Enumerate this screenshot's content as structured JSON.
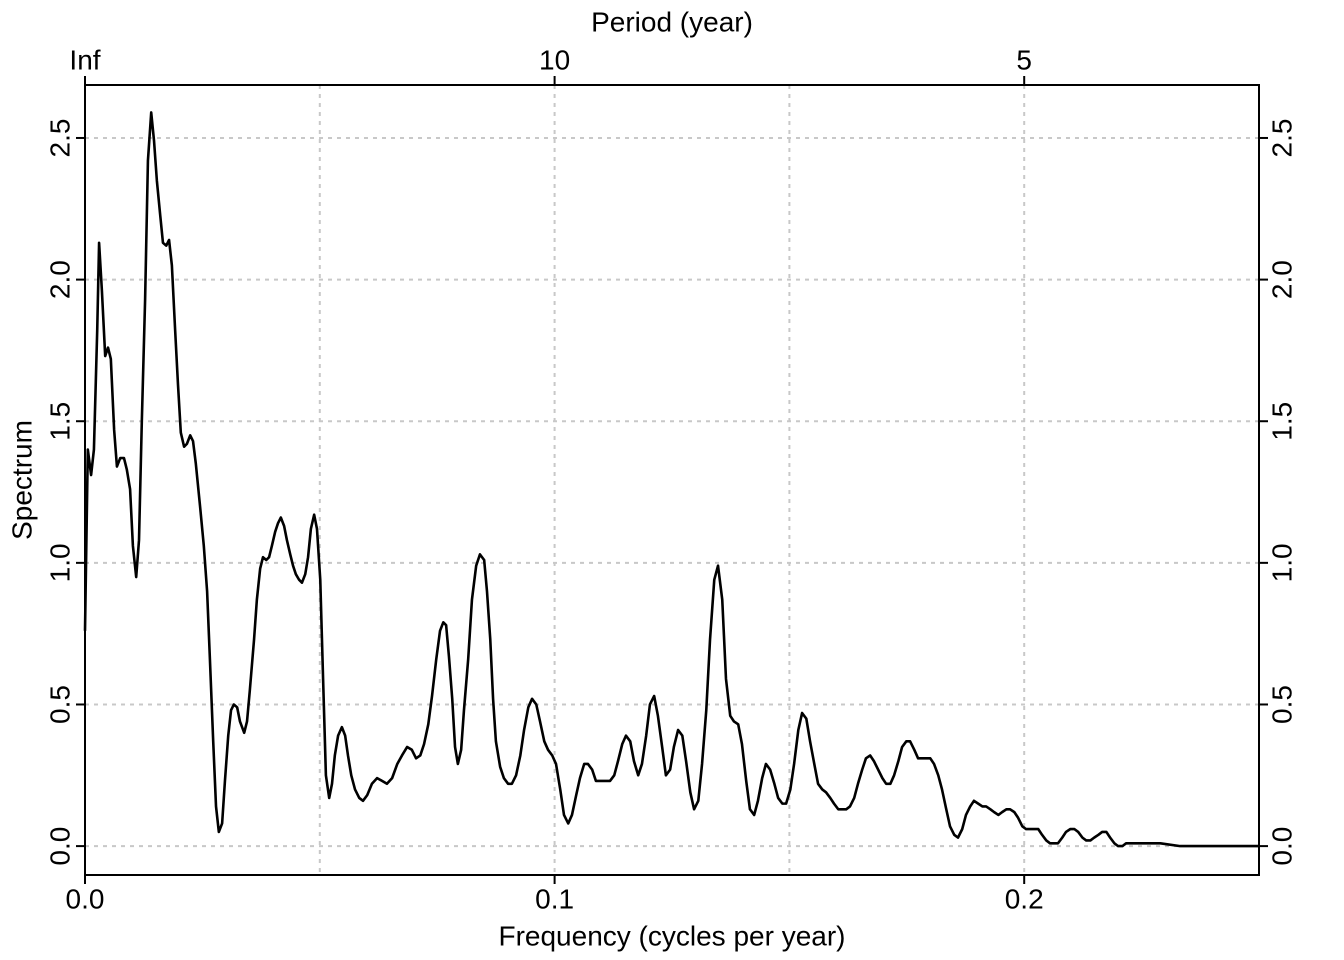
{
  "chart_data": {
    "type": "line",
    "xlabel": "Frequency (cycles per year)",
    "ylabel": "Spectrum",
    "x2label": "Period (year)",
    "x": [
      0,
      0.0006,
      0.0013,
      0.0019,
      0.0026,
      0.003,
      0.0036,
      0.0043,
      0.0049,
      0.0055,
      0.0062,
      0.0068,
      0.0075,
      0.0083,
      0.0089,
      0.0096,
      0.0102,
      0.0109,
      0.0115,
      0.0121,
      0.0128,
      0.0134,
      0.0141,
      0.0147,
      0.0153,
      0.016,
      0.0166,
      0.0173,
      0.0179,
      0.0185,
      0.0192,
      0.0198,
      0.0204,
      0.0211,
      0.0217,
      0.0224,
      0.023,
      0.0236,
      0.0245,
      0.0253,
      0.026,
      0.0266,
      0.0273,
      0.0279,
      0.0285,
      0.0292,
      0.0298,
      0.0305,
      0.0311,
      0.0317,
      0.0324,
      0.033,
      0.0339,
      0.0345,
      0.0351,
      0.036,
      0.0366,
      0.0373,
      0.0379,
      0.0386,
      0.0392,
      0.0398,
      0.0405,
      0.0411,
      0.0417,
      0.0424,
      0.043,
      0.0437,
      0.0443,
      0.0449,
      0.0456,
      0.0462,
      0.0469,
      0.0475,
      0.0481,
      0.0488,
      0.0494,
      0.0501,
      0.0507,
      0.0513,
      0.052,
      0.0526,
      0.0532,
      0.0539,
      0.0547,
      0.0554,
      0.056,
      0.0567,
      0.0575,
      0.0584,
      0.0592,
      0.0601,
      0.0611,
      0.0622,
      0.0633,
      0.0643,
      0.0654,
      0.0665,
      0.0675,
      0.0686,
      0.0696,
      0.0705,
      0.0714,
      0.0722,
      0.0731,
      0.0739,
      0.0748,
      0.0756,
      0.0763,
      0.0769,
      0.0775,
      0.0782,
      0.0788,
      0.0794,
      0.0801,
      0.0807,
      0.0816,
      0.0824,
      0.0833,
      0.0841,
      0.085,
      0.0856,
      0.0863,
      0.0869,
      0.0875,
      0.0884,
      0.0892,
      0.0901,
      0.0909,
      0.0918,
      0.0927,
      0.0935,
      0.0944,
      0.0952,
      0.0961,
      0.0969,
      0.0978,
      0.0986,
      0.0995,
      0.1003,
      0.1012,
      0.102,
      0.1029,
      0.1037,
      0.1046,
      0.1054,
      0.1063,
      0.1071,
      0.108,
      0.1088,
      0.1097,
      0.1108,
      0.1118,
      0.1127,
      0.1135,
      0.1144,
      0.1152,
      0.1161,
      0.1169,
      0.1178,
      0.1186,
      0.1195,
      0.1203,
      0.1212,
      0.122,
      0.1229,
      0.1237,
      0.1246,
      0.1254,
      0.1263,
      0.1272,
      0.128,
      0.1289,
      0.1297,
      0.1306,
      0.1314,
      0.1323,
      0.1331,
      0.134,
      0.1348,
      0.1357,
      0.1365,
      0.1374,
      0.1382,
      0.1391,
      0.1399,
      0.1408,
      0.1416,
      0.1425,
      0.1433,
      0.1442,
      0.145,
      0.1459,
      0.1468,
      0.1476,
      0.1485,
      0.1493,
      0.1502,
      0.151,
      0.1519,
      0.1527,
      0.1536,
      0.1544,
      0.1553,
      0.1561,
      0.157,
      0.1578,
      0.1587,
      0.1595,
      0.1604,
      0.1612,
      0.1621,
      0.1629,
      0.1638,
      0.1646,
      0.1655,
      0.1663,
      0.1672,
      0.168,
      0.1689,
      0.1698,
      0.1706,
      0.1715,
      0.1723,
      0.1732,
      0.174,
      0.1749,
      0.1757,
      0.1766,
      0.1774,
      0.1783,
      0.1791,
      0.18,
      0.1808,
      0.1817,
      0.1825,
      0.1834,
      0.1842,
      0.1851,
      0.1859,
      0.1868,
      0.1876,
      0.1885,
      0.1893,
      0.1902,
      0.1911,
      0.1919,
      0.1928,
      0.1936,
      0.1945,
      0.1953,
      0.1962,
      0.197,
      0.1979,
      0.1987,
      0.1996,
      0.2004,
      0.2013,
      0.2021,
      0.203,
      0.2038,
      0.2047,
      0.2055,
      0.2064,
      0.2072,
      0.2081,
      0.2089,
      0.2098,
      0.2107,
      0.2115,
      0.2124,
      0.2132,
      0.2141,
      0.2149,
      0.2158,
      0.2166,
      0.2175,
      0.2183,
      0.2192,
      0.22,
      0.2209,
      0.2217,
      0.2226,
      0.2247,
      0.229,
      0.2332,
      0.2375,
      0.2417,
      0.246,
      0.25
    ],
    "series": [
      {
        "color": "#000000",
        "values": [
          0.76,
          1.4,
          1.31,
          1.4,
          1.82,
          2.13,
          1.96,
          1.73,
          1.76,
          1.72,
          1.47,
          1.34,
          1.37,
          1.37,
          1.33,
          1.26,
          1.06,
          0.95,
          1.08,
          1.5,
          1.93,
          2.42,
          2.59,
          2.49,
          2.35,
          2.23,
          2.13,
          2.12,
          2.14,
          2.05,
          1.82,
          1.63,
          1.46,
          1.41,
          1.42,
          1.45,
          1.43,
          1.35,
          1.2,
          1.06,
          0.9,
          0.66,
          0.37,
          0.14,
          0.05,
          0.08,
          0.23,
          0.39,
          0.48,
          0.5,
          0.49,
          0.44,
          0.4,
          0.44,
          0.55,
          0.73,
          0.87,
          0.98,
          1.02,
          1.01,
          1.02,
          1.06,
          1.11,
          1.14,
          1.16,
          1.13,
          1.08,
          1.03,
          0.99,
          0.96,
          0.94,
          0.93,
          0.96,
          1.02,
          1.12,
          1.17,
          1.12,
          0.94,
          0.59,
          0.25,
          0.17,
          0.22,
          0.32,
          0.39,
          0.42,
          0.39,
          0.32,
          0.25,
          0.2,
          0.17,
          0.16,
          0.18,
          0.22,
          0.24,
          0.23,
          0.22,
          0.24,
          0.29,
          0.32,
          0.35,
          0.34,
          0.31,
          0.32,
          0.36,
          0.43,
          0.53,
          0.66,
          0.76,
          0.79,
          0.78,
          0.67,
          0.52,
          0.35,
          0.29,
          0.34,
          0.48,
          0.66,
          0.87,
          0.99,
          1.03,
          1.01,
          0.9,
          0.73,
          0.52,
          0.37,
          0.28,
          0.24,
          0.22,
          0.22,
          0.25,
          0.32,
          0.41,
          0.49,
          0.52,
          0.5,
          0.44,
          0.37,
          0.34,
          0.32,
          0.29,
          0.2,
          0.11,
          0.08,
          0.11,
          0.18,
          0.24,
          0.29,
          0.29,
          0.27,
          0.23,
          0.23,
          0.23,
          0.23,
          0.25,
          0.3,
          0.36,
          0.39,
          0.37,
          0.3,
          0.25,
          0.29,
          0.39,
          0.5,
          0.53,
          0.46,
          0.35,
          0.25,
          0.27,
          0.35,
          0.41,
          0.39,
          0.3,
          0.19,
          0.13,
          0.16,
          0.29,
          0.48,
          0.73,
          0.94,
          0.99,
          0.87,
          0.59,
          0.46,
          0.44,
          0.43,
          0.36,
          0.23,
          0.13,
          0.11,
          0.16,
          0.24,
          0.29,
          0.27,
          0.22,
          0.17,
          0.15,
          0.15,
          0.2,
          0.29,
          0.41,
          0.47,
          0.45,
          0.37,
          0.29,
          0.22,
          0.2,
          0.19,
          0.17,
          0.15,
          0.13,
          0.13,
          0.13,
          0.14,
          0.17,
          0.22,
          0.27,
          0.31,
          0.32,
          0.3,
          0.27,
          0.24,
          0.22,
          0.22,
          0.25,
          0.3,
          0.35,
          0.37,
          0.37,
          0.34,
          0.31,
          0.31,
          0.31,
          0.31,
          0.29,
          0.25,
          0.2,
          0.13,
          0.07,
          0.04,
          0.03,
          0.06,
          0.11,
          0.14,
          0.16,
          0.15,
          0.14,
          0.14,
          0.13,
          0.12,
          0.11,
          0.12,
          0.13,
          0.13,
          0.12,
          0.1,
          0.07,
          0.06,
          0.06,
          0.06,
          0.06,
          0.04,
          0.02,
          0.01,
          0.01,
          0.01,
          0.03,
          0.05,
          0.06,
          0.06,
          0.05,
          0.03,
          0.02,
          0.02,
          0.03,
          0.04,
          0.05,
          0.05,
          0.03,
          0.01,
          0,
          0,
          0.01,
          0.01,
          0.01,
          0.01,
          0,
          0,
          0,
          0,
          0
        ]
      }
    ],
    "xlim": [
      0,
      0.25
    ],
    "ylim": [
      -0.102,
      2.687
    ],
    "xticks": [
      {
        "value": 0,
        "label": "0.0"
      },
      0.1,
      0.2
    ],
    "x2ticks": [
      {
        "value": 0,
        "label": "Inf"
      },
      {
        "value": 0.1,
        "label": "10"
      },
      {
        "value": 0.2,
        "label": "5"
      }
    ],
    "yticks": [
      {
        "value": 0,
        "label": "0.0"
      },
      0.5,
      {
        "value": 1,
        "label": "1.0"
      },
      1.5,
      {
        "value": 2,
        "label": "2.0"
      },
      2.5
    ],
    "xgrid": [
      0.05,
      0.1,
      0.15,
      0.2
    ],
    "grid": true,
    "right_axis": true
  }
}
